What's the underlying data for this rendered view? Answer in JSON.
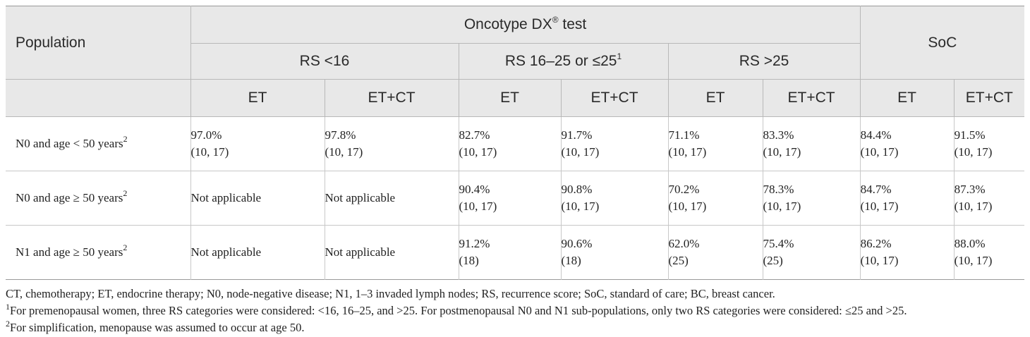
{
  "header": {
    "population": "Population",
    "oncotype": "Oncotype DX",
    "oncotype_reg": "®",
    "oncotype_suffix": " test",
    "soc": "SoC",
    "rs_lt16": "RS <16",
    "rs_mid": "RS 16–25 or ≤25",
    "rs_mid_sup": "1",
    "rs_gt25": "RS >25",
    "et": "ET",
    "etct": "ET+CT"
  },
  "rows": [
    {
      "population": "N0 and age < 50 years",
      "sup": "2",
      "cells": [
        {
          "value": "97.0%",
          "ref": "(10, 17)"
        },
        {
          "value": "97.8%",
          "ref": "(10, 17)"
        },
        {
          "value": "82.7%",
          "ref": "(10, 17)"
        },
        {
          "value": "91.7%",
          "ref": "(10, 17)"
        },
        {
          "value": "71.1%",
          "ref": "(10, 17)"
        },
        {
          "value": "83.3%",
          "ref": "(10, 17)"
        },
        {
          "value": "84.4%",
          "ref": "(10, 17)"
        },
        {
          "value": "91.5%",
          "ref": "(10, 17)"
        }
      ]
    },
    {
      "population": "N0 and age ≥ 50 years",
      "sup": "2",
      "cells": [
        {
          "value": "Not applicable",
          "ref": ""
        },
        {
          "value": "Not applicable",
          "ref": ""
        },
        {
          "value": "90.4%",
          "ref": "(10, 17)"
        },
        {
          "value": "90.8%",
          "ref": "(10, 17)"
        },
        {
          "value": "70.2%",
          "ref": "(10, 17)"
        },
        {
          "value": "78.3%",
          "ref": "(10, 17)"
        },
        {
          "value": "84.7%",
          "ref": "(10, 17)"
        },
        {
          "value": "87.3%",
          "ref": "(10, 17)"
        }
      ]
    },
    {
      "population": "N1 and age ≥ 50 years",
      "sup": "2",
      "cells": [
        {
          "value": "Not applicable",
          "ref": ""
        },
        {
          "value": "Not applicable",
          "ref": ""
        },
        {
          "value": "91.2%",
          "ref": "(18)"
        },
        {
          "value": "90.6%",
          "ref": "(18)"
        },
        {
          "value": "62.0%",
          "ref": "(25)"
        },
        {
          "value": "75.4%",
          "ref": "(25)"
        },
        {
          "value": "86.2%",
          "ref": "(10, 17)"
        },
        {
          "value": "88.0%",
          "ref": "(10, 17)"
        }
      ]
    }
  ],
  "footnotes": {
    "abbrev": "CT, chemotherapy; ET, endocrine therapy; N0, node-negative disease; N1, 1–3 invaded lymph nodes; RS, recurrence score; SoC, standard of care; BC, breast cancer.",
    "fn1_mark": "1",
    "fn1": "For premenopausal women, three RS categories were considered: <16, 16–25, and >25. For postmenopausal N0 and N1 sub-populations, only two RS categories were considered: ≤25 and >25.",
    "fn2_mark": "2",
    "fn2": "For simplification, menopause was assumed to occur at age 50."
  },
  "colors": {
    "header_bg": "#e8e8e8",
    "border": "#b8b8b8"
  }
}
